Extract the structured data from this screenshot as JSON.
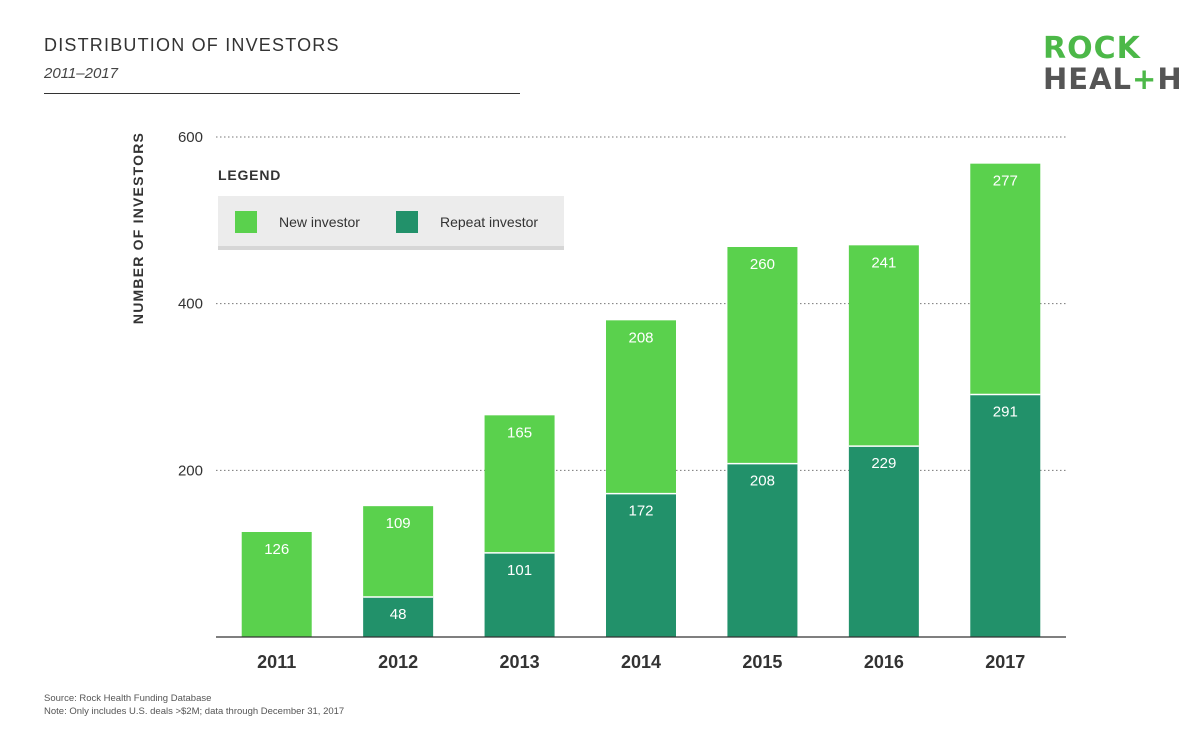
{
  "header": {
    "title": "DISTRIBUTION OF INVESTORS",
    "subtitle": "2011–2017"
  },
  "logo": {
    "line1": "ROCK",
    "line2_a": "HEAL",
    "line2_plus": "+",
    "line2_b": "H"
  },
  "legend": {
    "title": "LEGEND",
    "items": [
      {
        "label": "New investor",
        "color": "#5ad14d"
      },
      {
        "label": "Repeat investor",
        "color": "#22916a"
      }
    ]
  },
  "footer": {
    "source": "Source: Rock Health Funding Database",
    "note": "Note: Only includes U.S. deals >$2M; data through December 31, 2017"
  },
  "chart_data": {
    "type": "bar",
    "stacked": true,
    "categories": [
      "2011",
      "2012",
      "2013",
      "2014",
      "2015",
      "2016",
      "2017"
    ],
    "series": [
      {
        "name": "Repeat investor",
        "color": "#22916a",
        "values": [
          0,
          48,
          101,
          172,
          208,
          229,
          291
        ]
      },
      {
        "name": "New investor",
        "color": "#5ad14d",
        "values": [
          126,
          109,
          165,
          208,
          260,
          241,
          277
        ]
      }
    ],
    "ylabel": "NUMBER OF INVESTORS",
    "ylim": [
      0,
      600
    ],
    "yticks": [
      200,
      400,
      600
    ],
    "grid": true,
    "legend_position": "top-left"
  }
}
